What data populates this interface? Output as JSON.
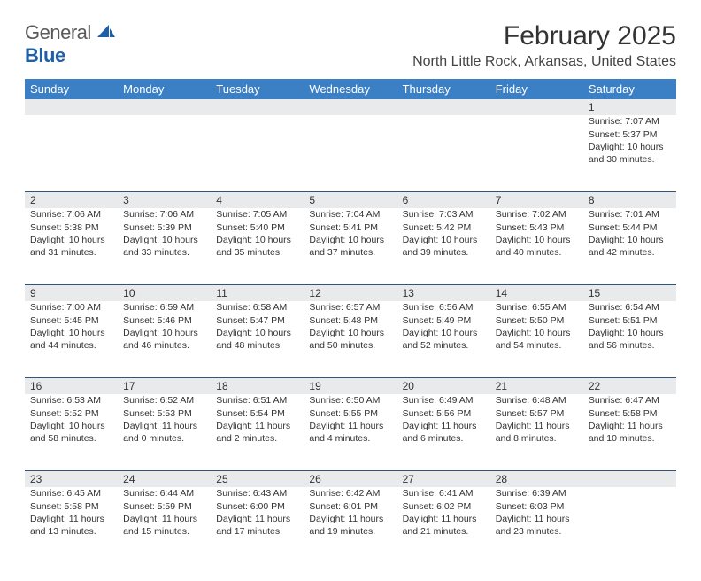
{
  "logo": {
    "text_left": "General",
    "text_right": "Blue"
  },
  "title": "February 2025",
  "location": "North Little Rock, Arkansas, United States",
  "colors": {
    "header_bg": "#3b7fc4",
    "header_text": "#ffffff",
    "daynum_bg": "#e9eaec",
    "divider": "#2f557a",
    "page_bg": "#ffffff",
    "text": "#333333",
    "logo_gray": "#5a5a5a",
    "logo_blue": "#1f5fa8"
  },
  "typography": {
    "title_fontsize": 30,
    "location_fontsize": 16,
    "header_fontsize": 13,
    "daynum_fontsize": 12,
    "body_fontsize": 10.5
  },
  "day_headers": [
    "Sunday",
    "Monday",
    "Tuesday",
    "Wednesday",
    "Thursday",
    "Friday",
    "Saturday"
  ],
  "weeks": [
    [
      null,
      null,
      null,
      null,
      null,
      null,
      {
        "n": "1",
        "sunrise": "7:07 AM",
        "sunset": "5:37 PM",
        "day_h": "10",
        "day_m": "30"
      }
    ],
    [
      {
        "n": "2",
        "sunrise": "7:06 AM",
        "sunset": "5:38 PM",
        "day_h": "10",
        "day_m": "31"
      },
      {
        "n": "3",
        "sunrise": "7:06 AM",
        "sunset": "5:39 PM",
        "day_h": "10",
        "day_m": "33"
      },
      {
        "n": "4",
        "sunrise": "7:05 AM",
        "sunset": "5:40 PM",
        "day_h": "10",
        "day_m": "35"
      },
      {
        "n": "5",
        "sunrise": "7:04 AM",
        "sunset": "5:41 PM",
        "day_h": "10",
        "day_m": "37"
      },
      {
        "n": "6",
        "sunrise": "7:03 AM",
        "sunset": "5:42 PM",
        "day_h": "10",
        "day_m": "39"
      },
      {
        "n": "7",
        "sunrise": "7:02 AM",
        "sunset": "5:43 PM",
        "day_h": "10",
        "day_m": "40"
      },
      {
        "n": "8",
        "sunrise": "7:01 AM",
        "sunset": "5:44 PM",
        "day_h": "10",
        "day_m": "42"
      }
    ],
    [
      {
        "n": "9",
        "sunrise": "7:00 AM",
        "sunset": "5:45 PM",
        "day_h": "10",
        "day_m": "44"
      },
      {
        "n": "10",
        "sunrise": "6:59 AM",
        "sunset": "5:46 PM",
        "day_h": "10",
        "day_m": "46"
      },
      {
        "n": "11",
        "sunrise": "6:58 AM",
        "sunset": "5:47 PM",
        "day_h": "10",
        "day_m": "48"
      },
      {
        "n": "12",
        "sunrise": "6:57 AM",
        "sunset": "5:48 PM",
        "day_h": "10",
        "day_m": "50"
      },
      {
        "n": "13",
        "sunrise": "6:56 AM",
        "sunset": "5:49 PM",
        "day_h": "10",
        "day_m": "52"
      },
      {
        "n": "14",
        "sunrise": "6:55 AM",
        "sunset": "5:50 PM",
        "day_h": "10",
        "day_m": "54"
      },
      {
        "n": "15",
        "sunrise": "6:54 AM",
        "sunset": "5:51 PM",
        "day_h": "10",
        "day_m": "56"
      }
    ],
    [
      {
        "n": "16",
        "sunrise": "6:53 AM",
        "sunset": "5:52 PM",
        "day_h": "10",
        "day_m": "58"
      },
      {
        "n": "17",
        "sunrise": "6:52 AM",
        "sunset": "5:53 PM",
        "day_h": "11",
        "day_m": "0"
      },
      {
        "n": "18",
        "sunrise": "6:51 AM",
        "sunset": "5:54 PM",
        "day_h": "11",
        "day_m": "2"
      },
      {
        "n": "19",
        "sunrise": "6:50 AM",
        "sunset": "5:55 PM",
        "day_h": "11",
        "day_m": "4"
      },
      {
        "n": "20",
        "sunrise": "6:49 AM",
        "sunset": "5:56 PM",
        "day_h": "11",
        "day_m": "6"
      },
      {
        "n": "21",
        "sunrise": "6:48 AM",
        "sunset": "5:57 PM",
        "day_h": "11",
        "day_m": "8"
      },
      {
        "n": "22",
        "sunrise": "6:47 AM",
        "sunset": "5:58 PM",
        "day_h": "11",
        "day_m": "10"
      }
    ],
    [
      {
        "n": "23",
        "sunrise": "6:45 AM",
        "sunset": "5:58 PM",
        "day_h": "11",
        "day_m": "13"
      },
      {
        "n": "24",
        "sunrise": "6:44 AM",
        "sunset": "5:59 PM",
        "day_h": "11",
        "day_m": "15"
      },
      {
        "n": "25",
        "sunrise": "6:43 AM",
        "sunset": "6:00 PM",
        "day_h": "11",
        "day_m": "17"
      },
      {
        "n": "26",
        "sunrise": "6:42 AM",
        "sunset": "6:01 PM",
        "day_h": "11",
        "day_m": "19"
      },
      {
        "n": "27",
        "sunrise": "6:41 AM",
        "sunset": "6:02 PM",
        "day_h": "11",
        "day_m": "21"
      },
      {
        "n": "28",
        "sunrise": "6:39 AM",
        "sunset": "6:03 PM",
        "day_h": "11",
        "day_m": "23"
      },
      null
    ]
  ],
  "labels": {
    "sunrise": "Sunrise:",
    "sunset": "Sunset:",
    "daylight_prefix": "Daylight:",
    "hours_word": "hours",
    "and_word": "and",
    "minutes_word": "minutes."
  }
}
